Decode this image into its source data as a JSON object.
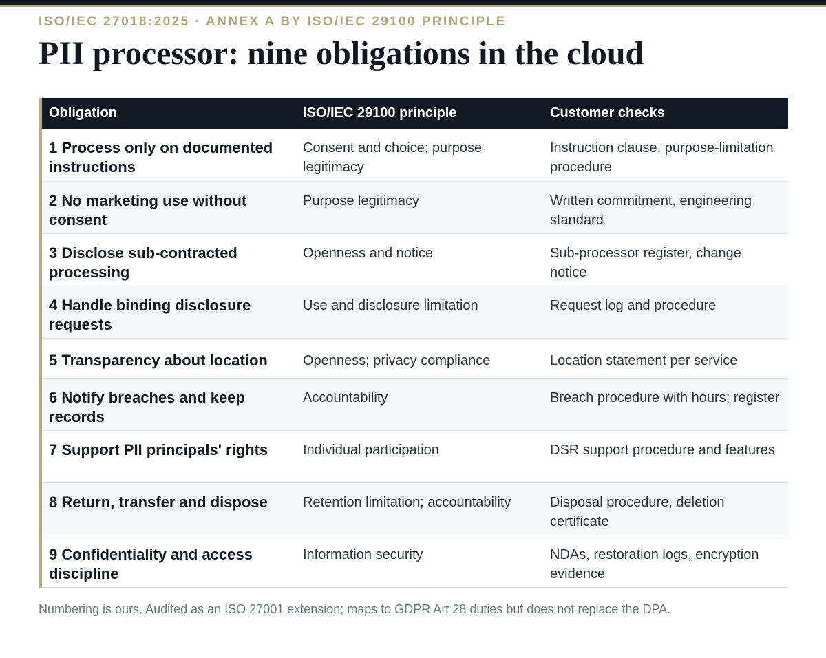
{
  "header": {
    "eyebrow": "ISO/IEC 27018:2025 · ANNEX A BY ISO/IEC 29100 PRINCIPLE",
    "title": "PII processor: nine obligations in the cloud"
  },
  "table": {
    "columns": [
      "Obligation",
      "ISO/IEC 29100 principle",
      "Customer checks"
    ],
    "rows": [
      {
        "obligation": "1 Process only on documented instructions",
        "principle": "Consent and choice; purpose legitimacy",
        "checks": "Instruction clause, purpose-limitation procedure"
      },
      {
        "obligation": "2 No marketing use without consent",
        "principle": "Purpose legitimacy",
        "checks": "Written commitment, engineering standard"
      },
      {
        "obligation": "3 Disclose sub-contracted processing",
        "principle": "Openness and notice",
        "checks": "Sub-processor register, change notice"
      },
      {
        "obligation": "4 Handle binding disclosure requests",
        "principle": "Use and disclosure limitation",
        "checks": "Request log and procedure"
      },
      {
        "obligation": "5 Transparency about location",
        "principle": "Openness; privacy compliance",
        "checks": "Location statement per service"
      },
      {
        "obligation": "6 Notify breaches and keep records",
        "principle": "Accountability",
        "checks": "Breach procedure with hours; register"
      },
      {
        "obligation": "7 Support PII principals' rights",
        "principle": "Individual participation",
        "checks": "DSR support procedure and features"
      },
      {
        "obligation": "8 Return, transfer and dispose",
        "principle": "Retention limitation; accountability",
        "checks": "Disposal procedure, deletion certificate"
      },
      {
        "obligation": "9 Confidentiality and access discipline",
        "principle": "Information security",
        "checks": "NDAs, restoration logs, encryption evidence"
      }
    ]
  },
  "footnote": "Numbering is ours. Audited as an ISO 27001 extension; maps to GDPR Art 28 duties but does not replace the DPA.",
  "colors": {
    "accent": "#b9ab85",
    "header_bg": "#111923",
    "stripe": "#f4f7f9"
  }
}
